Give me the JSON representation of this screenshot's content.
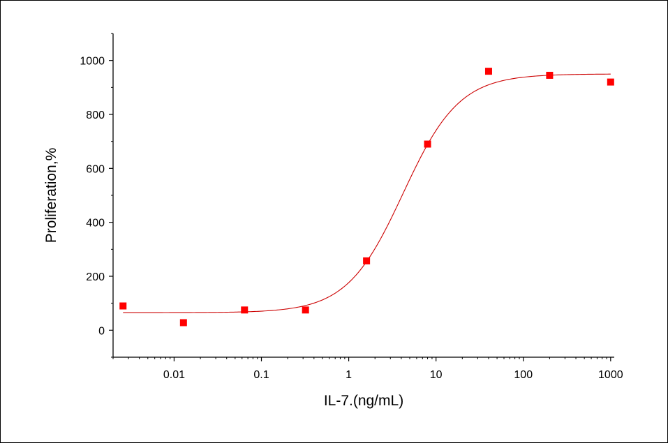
{
  "chart_data": {
    "type": "scatter",
    "title": "",
    "xlabel": "IL-7.(ng/mL)",
    "ylabel": "Proliferation,%",
    "x_scale": "log",
    "xlim": [
      0.002,
      1100
    ],
    "ylim": [
      -100,
      1100
    ],
    "x_ticks": [
      0.01,
      0.1,
      1,
      10,
      100,
      1000
    ],
    "x_tick_labels": [
      "0.01",
      "0.1",
      "1",
      "10",
      "100",
      "1000"
    ],
    "y_ticks": [
      0,
      200,
      400,
      600,
      800,
      1000
    ],
    "y_tick_labels": [
      "0",
      "200",
      "400",
      "600",
      "800",
      "1000"
    ],
    "grid": false,
    "legend": "none",
    "series": [
      {
        "type": "scatter",
        "color": "#ff0000",
        "marker": "square",
        "x": [
          0.0026,
          0.0128,
          0.064,
          0.32,
          1.6,
          8,
          40,
          200,
          1000
        ],
        "y": [
          90,
          28,
          75,
          75,
          257,
          690,
          960,
          945,
          920
        ]
      },
      {
        "type": "line",
        "color": "#cc0000",
        "fit": "4PL",
        "fit_params": {
          "bottom": 65,
          "top": 950,
          "ec50": 4.2,
          "hill": 1.35
        }
      }
    ]
  }
}
